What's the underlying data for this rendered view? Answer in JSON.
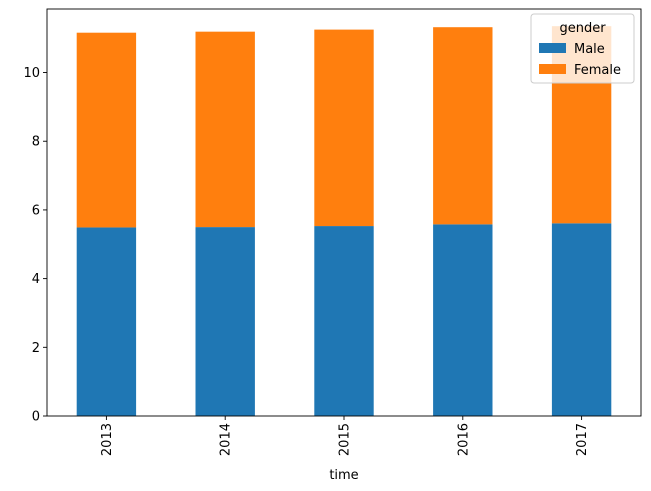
{
  "chart_data": {
    "type": "bar",
    "stacked": true,
    "categories": [
      "2013",
      "2014",
      "2015",
      "2016",
      "2017"
    ],
    "series": [
      {
        "name": "Male",
        "color": "#1f77b4",
        "values": [
          5.49,
          5.5,
          5.53,
          5.58,
          5.61
        ]
      },
      {
        "name": "Female",
        "color": "#ff7f0e",
        "values": [
          5.67,
          5.69,
          5.72,
          5.74,
          5.74
        ]
      }
    ],
    "xlabel": "time",
    "ylabel": "",
    "ylim": [
      0,
      11.85
    ],
    "yticks": [
      "0",
      "2",
      "4",
      "6",
      "8",
      "10"
    ],
    "legend": {
      "title": "gender",
      "placement": "top-right"
    },
    "grid": false
  }
}
